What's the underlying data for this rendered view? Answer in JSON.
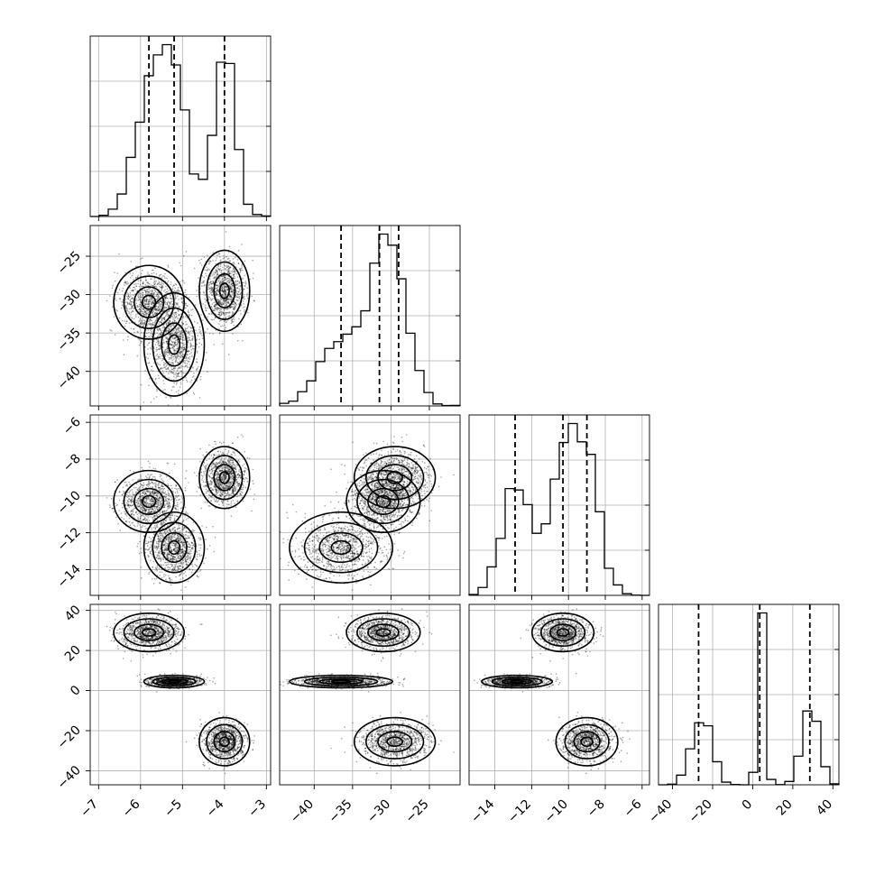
{
  "chart_data": {
    "type": "corner",
    "title": "",
    "variables": [
      {
        "label": "",
        "range": [
          -7.2,
          -2.9
        ],
        "ticks": [
          -7,
          -6,
          -5,
          -4,
          -3
        ],
        "quantiles": [
          -5.8,
          -5.2,
          -4.0
        ],
        "modes": [
          {
            "mean": -5.8,
            "sd": 0.35,
            "weight": 0.333
          },
          {
            "mean": -5.2,
            "sd": 0.3,
            "weight": 0.333
          },
          {
            "mean": -4.0,
            "sd": 0.25,
            "weight": 0.334
          }
        ]
      },
      {
        "label": "",
        "range": [
          -44.5,
          -21.0
        ],
        "ticks": [
          -40,
          -35,
          -30,
          -25
        ],
        "quantiles": [
          -36.5,
          -31.5,
          -29.0
        ],
        "modes": [
          {
            "mean": -31.0,
            "sd": 2.0,
            "weight": 0.333
          },
          {
            "mean": -36.5,
            "sd": 2.8,
            "weight": 0.333
          },
          {
            "mean": -29.5,
            "sd": 2.2,
            "weight": 0.334
          }
        ]
      },
      {
        "label": "",
        "range": [
          -15.4,
          -5.6
        ],
        "ticks": [
          -14,
          -12,
          -10,
          -8,
          -6
        ],
        "quantiles": [
          -12.9,
          -10.3,
          -9.0
        ],
        "modes": [
          {
            "mean": -10.3,
            "sd": 0.7,
            "weight": 0.333
          },
          {
            "mean": -12.8,
            "sd": 0.8,
            "weight": 0.333
          },
          {
            "mean": -9.0,
            "sd": 0.7,
            "weight": 0.334
          }
        ]
      },
      {
        "label": "",
        "range": [
          -47.0,
          43.0
        ],
        "ticks": [
          -40,
          -20,
          0,
          20,
          40
        ],
        "quantiles": [
          -27.0,
          3.5,
          28.5
        ],
        "modes": [
          {
            "mean": 29.0,
            "sd": 4.0,
            "weight": 0.333
          },
          {
            "mean": 4.5,
            "sd": 1.3,
            "weight": 0.333
          },
          {
            "mean": -25.5,
            "sd": 5.0,
            "weight": 0.334
          }
        ]
      }
    ],
    "histogram_bins": 20,
    "quantile_levels": [
      0.16,
      0.5,
      0.84
    ],
    "grid": true,
    "colors": {
      "line": "#000000",
      "grid": "#b0b0b0",
      "density": "#000000"
    }
  }
}
